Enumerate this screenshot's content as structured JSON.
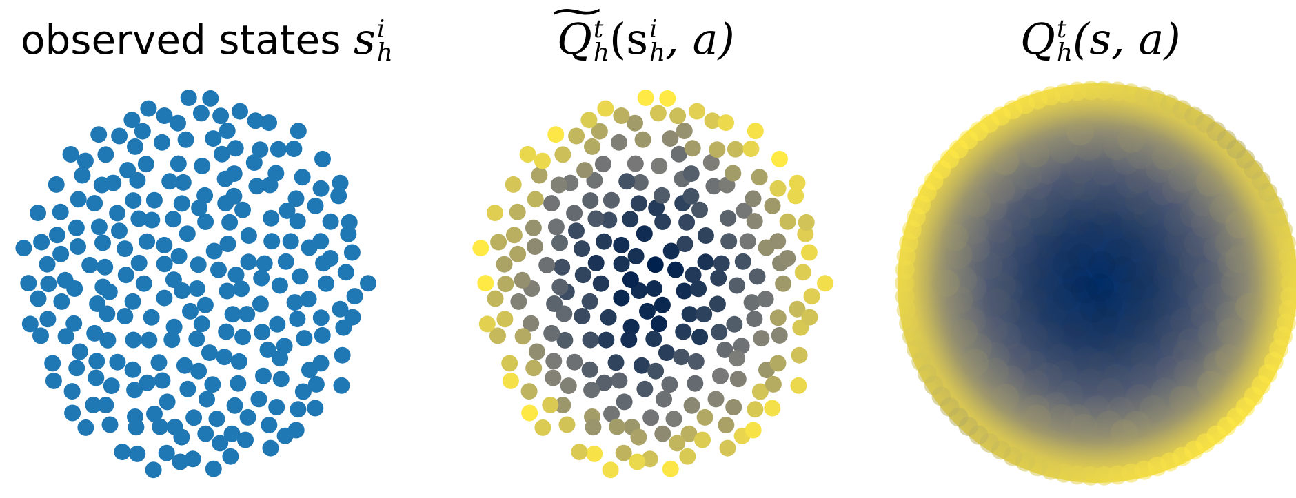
{
  "titles": {
    "observed": {
      "text": "observed states",
      "symbol": "s",
      "sup": "i",
      "sub": "h"
    },
    "qtilde": {
      "symbol": "Q",
      "sup": "t",
      "sub": "h",
      "args": "(s",
      "arg_sup": "i",
      "arg_sub": "h",
      "tail": ", a)"
    },
    "qtrue": {
      "symbol": "Q",
      "sup": "t",
      "sub": "h",
      "tail": "(s, a)"
    }
  },
  "colors": {
    "observed_point": "#1f77b4",
    "low_value": "#00204d",
    "mid_value": "#7b7b78",
    "high_value": "#ffe945"
  }
}
